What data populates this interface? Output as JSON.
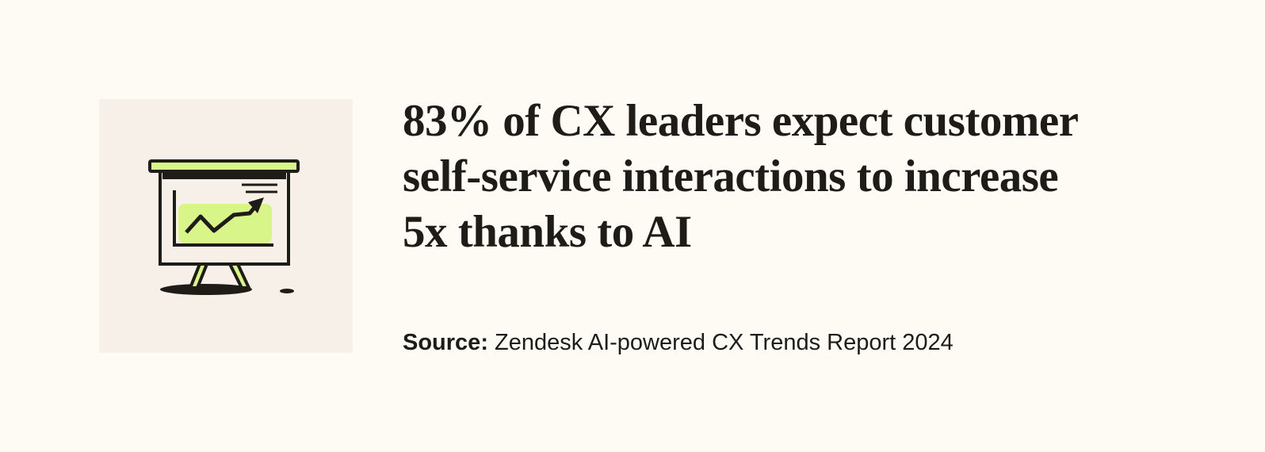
{
  "headline": {
    "lines": [
      "83% of CX leaders expect customer",
      "self-service interactions to increase",
      "5x thanks to AI"
    ]
  },
  "source": {
    "label": "Source:",
    "text": "Zendesk AI-powered CX Trends Report 2024"
  }
}
